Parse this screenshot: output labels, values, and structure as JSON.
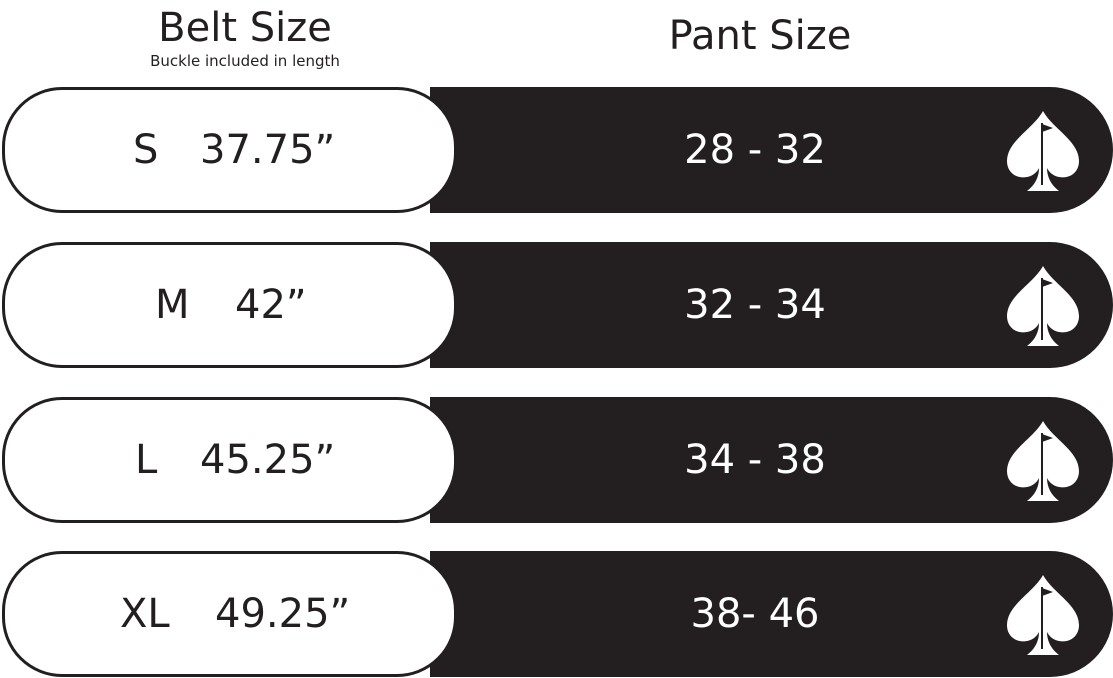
{
  "header": {
    "belt_title": "Belt Size",
    "belt_subtitle": "Buckle included in length",
    "pant_title": "Pant Size"
  },
  "rows": [
    {
      "size": "S",
      "length": "37.75”",
      "pant": "28 - 32"
    },
    {
      "size": "M",
      "length": "42”",
      "pant": "32 - 34"
    },
    {
      "size": "L",
      "length": "45.25”",
      "pant": "34 - 38"
    },
    {
      "size": "XL",
      "length": "49.25”",
      "pant": "38- 46"
    }
  ],
  "icon": "spade-golf-flag-icon",
  "colors": {
    "dark": "#231f20",
    "light": "#ffffff"
  }
}
